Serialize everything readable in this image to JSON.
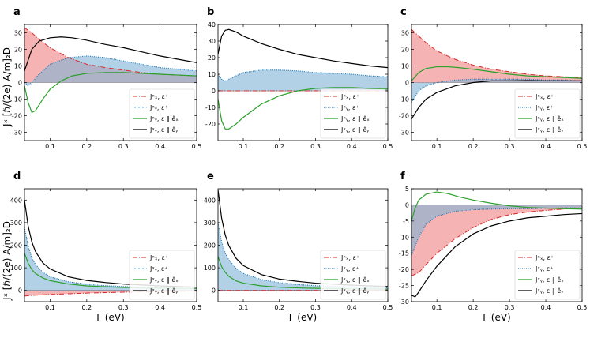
{
  "figure": {
    "ylabel_left": "Jˣ [ℏ/(2e) A/m]₂D",
    "xlabel": "Γ (eV)",
    "colors": {
      "red": "#d62728",
      "red_fill": "#f08080",
      "blue": "#1f77b4",
      "blue_fill": "#7fb3d5",
      "green": "#2ca02c",
      "black": "#000000"
    }
  },
  "chart_data": [
    {
      "panel": "a",
      "type": "line",
      "xlim": [
        0.03,
        0.5
      ],
      "ylim": [
        -35,
        35
      ],
      "xticks": [
        0.1,
        0.2,
        0.3,
        0.4,
        0.5
      ],
      "yticks": [
        -30,
        -20,
        -10,
        0,
        10,
        20,
        30
      ],
      "show_xlabels": false,
      "legend": [
        "Jˣₓ, ε⁺",
        "Jˣᵧ, ε⁺",
        "Jˣᵧ, ε ∥ êₓ",
        "Jˣᵧ, ε ∥ êᵧ"
      ],
      "series": [
        {
          "name": "Jx_x, eps+",
          "style": "red",
          "fill": true,
          "x": [
            0.03,
            0.05,
            0.07,
            0.1,
            0.15,
            0.2,
            0.25,
            0.3,
            0.35,
            0.4,
            0.45,
            0.5
          ],
          "y": [
            33,
            30,
            26,
            21,
            15,
            11,
            9,
            7.5,
            6,
            5,
            4.5,
            4
          ]
        },
        {
          "name": "Jx_y, eps+",
          "style": "blue",
          "fill": true,
          "x": [
            0.03,
            0.04,
            0.05,
            0.07,
            0.1,
            0.15,
            0.2,
            0.25,
            0.3,
            0.35,
            0.4,
            0.45,
            0.5
          ],
          "y": [
            0,
            -2,
            0,
            5,
            11,
            15,
            16,
            15,
            13,
            11,
            9,
            8,
            7
          ]
        },
        {
          "name": "Jx_y, eps || ex",
          "style": "green",
          "fill": false,
          "x": [
            0.03,
            0.04,
            0.05,
            0.06,
            0.08,
            0.1,
            0.13,
            0.16,
            0.2,
            0.25,
            0.3,
            0.35,
            0.4,
            0.45,
            0.5
          ],
          "y": [
            -2,
            -12,
            -18,
            -17,
            -10,
            -4,
            1,
            4,
            5.5,
            6,
            6,
            5.5,
            5,
            4.5,
            4
          ]
        },
        {
          "name": "Jx_y, eps || ey",
          "style": "black",
          "fill": false,
          "x": [
            0.03,
            0.05,
            0.07,
            0.1,
            0.13,
            0.16,
            0.2,
            0.25,
            0.3,
            0.35,
            0.4,
            0.45,
            0.5
          ],
          "y": [
            7,
            20,
            25,
            27,
            27.5,
            27,
            25.5,
            23,
            21,
            18.5,
            16,
            14,
            12
          ]
        }
      ]
    },
    {
      "panel": "b",
      "type": "line",
      "xlim": [
        0.03,
        0.5
      ],
      "ylim": [
        -30,
        40
      ],
      "xticks": [
        0.1,
        0.2,
        0.3,
        0.4,
        0.5
      ],
      "yticks": [
        -20,
        -10,
        0,
        10,
        20,
        30,
        40
      ],
      "show_xlabels": false,
      "legend": [
        "Jˣₓ, ε⁺",
        "Jˣᵧ, ε⁺",
        "Jˣᵧ, ε ∥ êₓ",
        "Jˣᵧ, ε ∥ êᵧ"
      ],
      "series": [
        {
          "name": "Jx_x, eps+",
          "style": "red",
          "fill": true,
          "x": [
            0.03,
            0.5
          ],
          "y": [
            0,
            0
          ]
        },
        {
          "name": "Jx_y, eps+",
          "style": "blue",
          "fill": true,
          "x": [
            0.03,
            0.04,
            0.05,
            0.06,
            0.08,
            0.1,
            0.15,
            0.2,
            0.25,
            0.3,
            0.35,
            0.4,
            0.45,
            0.5
          ],
          "y": [
            10,
            7,
            6,
            7,
            9,
            11,
            12.5,
            12.5,
            12,
            11,
            10.5,
            10,
            9,
            8.5
          ]
        },
        {
          "name": "Jx_y, eps || ex",
          "style": "green",
          "fill": false,
          "x": [
            0.03,
            0.04,
            0.05,
            0.06,
            0.08,
            0.1,
            0.15,
            0.2,
            0.25,
            0.3,
            0.35,
            0.4,
            0.45,
            0.5
          ],
          "y": [
            -5,
            -18,
            -23,
            -23,
            -20,
            -16,
            -8,
            -3,
            0,
            1.5,
            2,
            2,
            1.5,
            1
          ]
        },
        {
          "name": "Jx_y, eps || ey",
          "style": "black",
          "fill": false,
          "x": [
            0.03,
            0.04,
            0.05,
            0.06,
            0.08,
            0.1,
            0.15,
            0.2,
            0.25,
            0.3,
            0.35,
            0.4,
            0.45,
            0.5
          ],
          "y": [
            22,
            33,
            36.5,
            37,
            35.5,
            33,
            28.5,
            25,
            22,
            20,
            18,
            16.5,
            15,
            14
          ]
        }
      ]
    },
    {
      "panel": "c",
      "type": "line",
      "xlim": [
        0.03,
        0.5
      ],
      "ylim": [
        -35,
        35
      ],
      "xticks": [
        0.1,
        0.2,
        0.3,
        0.4,
        0.5
      ],
      "yticks": [
        -30,
        -20,
        -10,
        0,
        10,
        20,
        30
      ],
      "show_xlabels": false,
      "legend": [
        "Jˣₓ, ε⁺",
        "Jˣᵧ, ε⁺",
        "Jˣᵧ, ε ∥ êₓ",
        "Jˣᵧ, ε ∥ êᵧ"
      ],
      "series": [
        {
          "name": "Jx_x, eps+",
          "style": "red",
          "fill": true,
          "x": [
            0.03,
            0.05,
            0.07,
            0.1,
            0.15,
            0.2,
            0.25,
            0.3,
            0.35,
            0.4,
            0.45,
            0.5
          ],
          "y": [
            32,
            28,
            24,
            19,
            14,
            10.5,
            8,
            6.5,
            5,
            4,
            3.5,
            3
          ]
        },
        {
          "name": "Jx_y, eps+",
          "style": "blue",
          "fill": true,
          "x": [
            0.03,
            0.05,
            0.07,
            0.1,
            0.15,
            0.2,
            0.25,
            0.3,
            0.35,
            0.4,
            0.45,
            0.5
          ],
          "y": [
            -12,
            -5,
            -2,
            0,
            1.5,
            2,
            2,
            2,
            2,
            1.5,
            1.5,
            1
          ]
        },
        {
          "name": "Jx_y, eps || ex",
          "style": "green",
          "fill": false,
          "x": [
            0.03,
            0.05,
            0.07,
            0.1,
            0.13,
            0.16,
            0.2,
            0.25,
            0.3,
            0.35,
            0.4,
            0.45,
            0.5
          ],
          "y": [
            1,
            6,
            8.5,
            9.5,
            9.5,
            9,
            8,
            6.5,
            5,
            4,
            3.5,
            3,
            2.5
          ]
        },
        {
          "name": "Jx_y, eps || ey",
          "style": "black",
          "fill": false,
          "x": [
            0.03,
            0.05,
            0.07,
            0.1,
            0.15,
            0.2,
            0.25,
            0.3,
            0.35,
            0.4,
            0.45,
            0.5
          ],
          "y": [
            -22,
            -15,
            -10,
            -6,
            -2,
            0,
            1,
            1,
            1.2,
            1,
            1,
            1
          ]
        }
      ]
    },
    {
      "panel": "d",
      "type": "line",
      "xlim": [
        0.03,
        0.5
      ],
      "ylim": [
        -50,
        450
      ],
      "xticks": [
        0.1,
        0.2,
        0.3,
        0.4,
        0.5
      ],
      "yticks": [
        0,
        100,
        200,
        300,
        400
      ],
      "show_xlabels": true,
      "legend": [
        "Jˣₓ, ε⁺",
        "Jˣᵧ, ε⁺",
        "Jˣᵧ, ε ∥ êₓ",
        "Jˣᵧ, ε ∥ êᵧ"
      ],
      "series": [
        {
          "name": "Jx_x, eps+",
          "style": "red",
          "fill": true,
          "x": [
            0.03,
            0.05,
            0.1,
            0.2,
            0.3,
            0.4,
            0.5
          ],
          "y": [
            -25,
            -22,
            -18,
            -12,
            -8,
            -5,
            -3
          ]
        },
        {
          "name": "Jx_y, eps+",
          "style": "blue",
          "fill": true,
          "x": [
            0.03,
            0.04,
            0.05,
            0.06,
            0.08,
            0.1,
            0.15,
            0.2,
            0.25,
            0.3,
            0.4,
            0.5
          ],
          "y": [
            280,
            195,
            145,
            115,
            80,
            60,
            38,
            27,
            21,
            17,
            12,
            9
          ]
        },
        {
          "name": "Jx_y, eps || ex",
          "style": "green",
          "fill": false,
          "x": [
            0.03,
            0.04,
            0.05,
            0.06,
            0.08,
            0.1,
            0.15,
            0.2,
            0.25,
            0.3,
            0.4,
            0.5
          ],
          "y": [
            165,
            120,
            92,
            75,
            55,
            43,
            28,
            20,
            16,
            13,
            10,
            8
          ]
        },
        {
          "name": "Jx_y, eps || ey",
          "style": "black",
          "fill": false,
          "x": [
            0.03,
            0.04,
            0.05,
            0.06,
            0.08,
            0.1,
            0.15,
            0.2,
            0.25,
            0.3,
            0.4,
            0.5
          ],
          "y": [
            400,
            285,
            215,
            172,
            122,
            95,
            60,
            44,
            35,
            28,
            20,
            14
          ]
        }
      ]
    },
    {
      "panel": "e",
      "type": "line",
      "xlim": [
        0.03,
        0.5
      ],
      "ylim": [
        -50,
        450
      ],
      "xticks": [
        0.1,
        0.2,
        0.3,
        0.4,
        0.5
      ],
      "yticks": [
        0,
        100,
        200,
        300,
        400
      ],
      "show_xlabels": true,
      "legend": [
        "Jˣₓ, ε⁺",
        "Jˣᵧ, ε⁺",
        "Jˣᵧ, ε ∥ êₓ",
        "Jˣᵧ, ε ∥ êᵧ"
      ],
      "series": [
        {
          "name": "Jx_x, eps+",
          "style": "red",
          "fill": true,
          "x": [
            0.03,
            0.5
          ],
          "y": [
            0,
            0
          ]
        },
        {
          "name": "Jx_y, eps+",
          "style": "blue",
          "fill": true,
          "x": [
            0.03,
            0.04,
            0.05,
            0.06,
            0.08,
            0.1,
            0.15,
            0.2,
            0.25,
            0.3,
            0.4,
            0.5
          ],
          "y": [
            300,
            215,
            165,
            135,
            98,
            75,
            48,
            34,
            26,
            21,
            15,
            11
          ]
        },
        {
          "name": "Jx_y, eps || ex",
          "style": "green",
          "fill": false,
          "x": [
            0.03,
            0.04,
            0.05,
            0.06,
            0.08,
            0.1,
            0.15,
            0.2,
            0.25,
            0.3,
            0.4,
            0.5
          ],
          "y": [
            150,
            105,
            80,
            62,
            42,
            32,
            20,
            14,
            11,
            9,
            7,
            5
          ]
        },
        {
          "name": "Jx_y, eps || ey",
          "style": "black",
          "fill": false,
          "x": [
            0.03,
            0.04,
            0.05,
            0.06,
            0.08,
            0.1,
            0.15,
            0.2,
            0.25,
            0.3,
            0.4,
            0.5
          ],
          "y": [
            445,
            320,
            245,
            198,
            142,
            110,
            70,
            50,
            40,
            32,
            23,
            17
          ]
        }
      ]
    },
    {
      "panel": "f",
      "type": "line",
      "xlim": [
        0.03,
        0.5
      ],
      "ylim": [
        -30,
        5
      ],
      "xticks": [
        0.1,
        0.2,
        0.3,
        0.4,
        0.5
      ],
      "yticks": [
        -30,
        -25,
        -20,
        -15,
        -10,
        -5,
        0,
        5
      ],
      "show_xlabels": true,
      "legend": [
        "Jˣₓ, ε⁺",
        "Jˣᵧ, ε⁺",
        "Jˣᵧ, ε ∥ êₓ",
        "Jˣᵧ, ε ∥ êᵧ"
      ],
      "series": [
        {
          "name": "Jx_x, eps+",
          "style": "red",
          "fill": true,
          "x": [
            0.03,
            0.05,
            0.07,
            0.1,
            0.15,
            0.2,
            0.25,
            0.3,
            0.35,
            0.4,
            0.45,
            0.5
          ],
          "y": [
            -22,
            -21,
            -18.5,
            -15,
            -10.5,
            -7,
            -4.5,
            -3,
            -2.2,
            -1.7,
            -1.3,
            -1
          ]
        },
        {
          "name": "Jx_y, eps+",
          "style": "blue",
          "fill": true,
          "x": [
            0.03,
            0.05,
            0.07,
            0.1,
            0.15,
            0.2,
            0.25,
            0.3,
            0.35,
            0.4,
            0.45,
            0.5
          ],
          "y": [
            -15.5,
            -10,
            -6,
            -3.5,
            -2,
            -1.5,
            -1.3,
            -1.2,
            -1.2,
            -1.1,
            -1,
            -1
          ]
        },
        {
          "name": "Jx_y, eps || ex",
          "style": "green",
          "fill": false,
          "x": [
            0.03,
            0.04,
            0.05,
            0.07,
            0.1,
            0.13,
            0.16,
            0.2,
            0.25,
            0.3,
            0.35,
            0.4,
            0.45,
            0.5
          ],
          "y": [
            -5,
            -1,
            1.5,
            3.3,
            4,
            3.5,
            2.5,
            1.5,
            0.5,
            -0.3,
            -0.8,
            -1,
            -1.2,
            -1.3
          ]
        },
        {
          "name": "Jx_y, eps || ey",
          "style": "black",
          "fill": false,
          "x": [
            0.03,
            0.04,
            0.05,
            0.07,
            0.1,
            0.15,
            0.2,
            0.25,
            0.3,
            0.35,
            0.4,
            0.45,
            0.5
          ],
          "y": [
            -28,
            -28.5,
            -27,
            -23.5,
            -19,
            -13,
            -9,
            -6.5,
            -5,
            -4,
            -3.5,
            -3,
            -2.7
          ]
        }
      ]
    }
  ]
}
